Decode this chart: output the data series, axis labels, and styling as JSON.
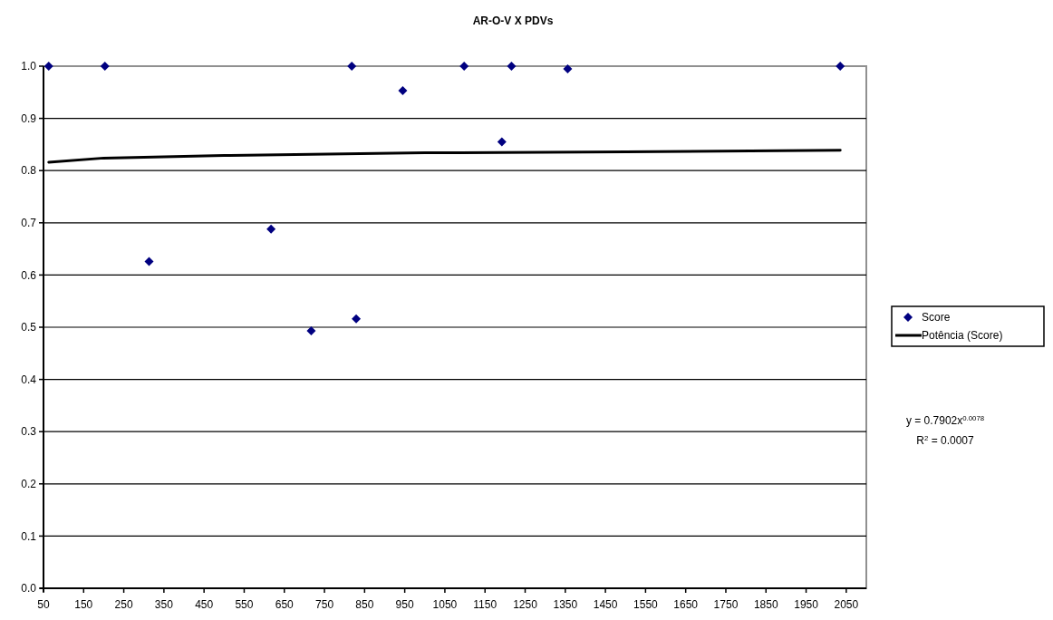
{
  "chart_data": {
    "type": "scatter",
    "title": "AR-O-V X PDVs",
    "series": [
      {
        "name": "Score",
        "color": "#000080",
        "marker": "diamond",
        "x": [
          63,
          203,
          313,
          617,
          717,
          818,
          829,
          945,
          1098,
          1192,
          1216,
          1356,
          2035
        ],
        "values": [
          1.0,
          1.0,
          0.626,
          0.688,
          0.493,
          1.0,
          0.516,
          0.953,
          1.0,
          0.855,
          1.0,
          0.995,
          1.0
        ]
      },
      {
        "name": "Potência (Score)",
        "type": "line",
        "color": "#000000",
        "line_style": "solid",
        "x": [
          63,
          200,
          500,
          1000,
          1500,
          2035
        ],
        "values": [
          0.816,
          0.824,
          0.829,
          0.834,
          0.836,
          0.839
        ]
      }
    ],
    "xlim": [
      50,
      2100
    ],
    "xticks": [
      50,
      150,
      250,
      350,
      450,
      550,
      650,
      750,
      850,
      950,
      1050,
      1150,
      1250,
      1350,
      1450,
      1550,
      1650,
      1750,
      1850,
      1950,
      2050
    ],
    "ylim": [
      0,
      1
    ],
    "yticks": [
      {
        "value": 0,
        "label": "0.0"
      },
      0.1,
      0.2,
      0.3,
      0.4,
      0.5,
      0.6,
      0.7,
      0.8,
      0.9,
      {
        "value": 1,
        "label": "1.0"
      }
    ],
    "grid": "y",
    "legend": "right",
    "annotations": [
      "y = 0.7902x$^{0.0078}$",
      "R$^{2}$ = 0.0007"
    ]
  }
}
